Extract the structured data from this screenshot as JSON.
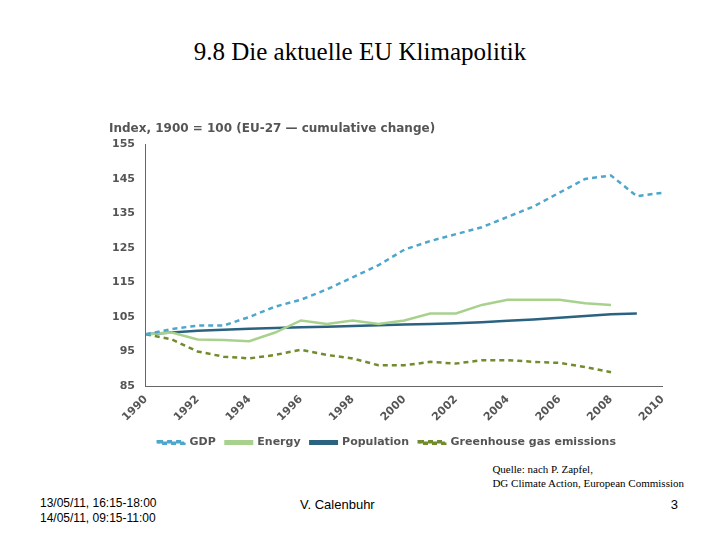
{
  "slide": {
    "title": "9.8 Die aktuelle EU Klimapolitik",
    "source": [
      "Quelle: nach P. Zapfel,",
      "DG Climate Action, European Commission"
    ],
    "dates": [
      "13/05/11, 16:15-18:00",
      "14/05/11, 09:15-11:00"
    ],
    "author": "V. Calenbuhr",
    "page": 3
  },
  "chart_data": {
    "type": "line",
    "title": "Index, 1900 = 100 (EU-27 — cumulative change)",
    "categories": [
      "1990",
      null,
      "1992",
      null,
      "1994",
      null,
      "1996",
      null,
      "1998",
      null,
      "2000",
      null,
      "2002",
      null,
      "2004",
      null,
      "2006",
      null,
      "2008",
      null,
      "2010"
    ],
    "series": [
      {
        "name": "GDP",
        "color": "#4da6cc",
        "line_style": "dashed",
        "values": [
          100,
          101.5,
          102.5,
          102.5,
          105,
          108,
          110,
          113,
          116.5,
          120,
          124.5,
          127,
          129,
          131,
          134,
          137,
          141,
          145,
          146,
          140,
          141
        ]
      },
      {
        "name": "Energy",
        "color": "#a9d18e",
        "line_style": "solid",
        "values": [
          100,
          100.5,
          98.5,
          98.3,
          98,
          100.5,
          104,
          103,
          104,
          103,
          104,
          106,
          106,
          108.5,
          110,
          110,
          110,
          109,
          108.5,
          null,
          null
        ]
      },
      {
        "name": "Population",
        "color": "#2b6280",
        "line_style": "solid",
        "values": [
          100,
          100.5,
          101,
          101.3,
          101.6,
          101.8,
          102,
          102.2,
          102.4,
          102.6,
          102.8,
          103,
          103.2,
          103.5,
          103.9,
          104.3,
          104.8,
          105.3,
          105.8,
          106,
          null
        ]
      },
      {
        "name": "Greenhouse gas emissions",
        "color": "#718c2c",
        "line_style": "dashed",
        "values": [
          100,
          98.5,
          95,
          93.5,
          93,
          94,
          95.5,
          94,
          93,
          91,
          91,
          92,
          91.5,
          92.5,
          92.5,
          92,
          91.7,
          90.5,
          89,
          null,
          null
        ]
      }
    ],
    "ylim": [
      85,
      155
    ],
    "yticks": [
      85,
      95,
      105,
      115,
      125,
      135,
      145,
      155
    ],
    "grid": false,
    "legend": "bottom"
  }
}
